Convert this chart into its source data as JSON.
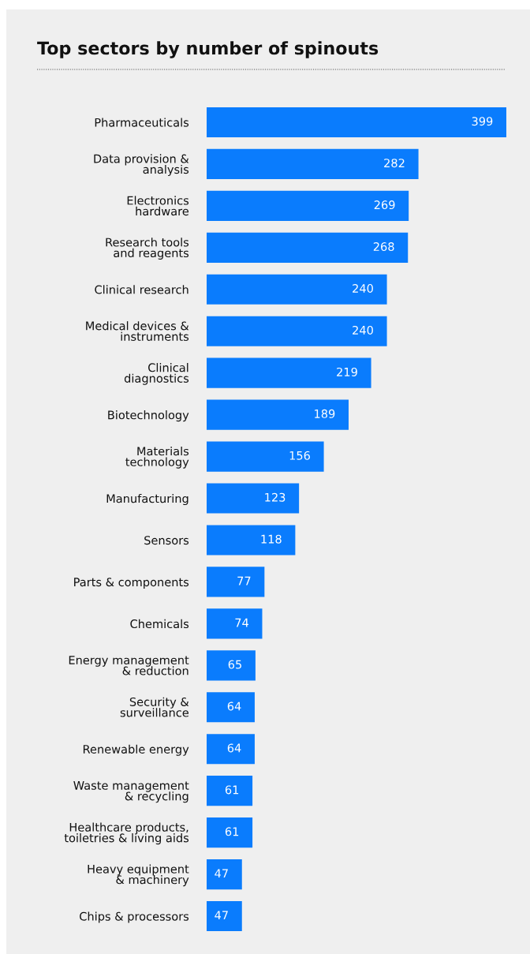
{
  "chart_data": {
    "type": "bar",
    "orientation": "horizontal",
    "title": "Top sectors by number of spinouts",
    "categories": [
      "Pharmaceuticals",
      "Data provision &\nanalysis",
      "Electronics\nhardware",
      "Research tools\nand reagents",
      "Clinical research",
      "Medical devices &\ninstruments",
      "Clinical\ndiagnostics",
      "Biotechnology",
      "Materials\ntechnology",
      "Manufacturing",
      "Sensors",
      "Parts & components",
      "Chemicals",
      "Energy management\n& reduction",
      "Security &\nsurveillance",
      "Renewable energy",
      "Waste management\n& recycling",
      "Healthcare products,\ntoiletries & living aids",
      "Heavy equipment\n& machinery",
      "Chips & processors"
    ],
    "values": [
      399,
      282,
      269,
      268,
      240,
      240,
      219,
      189,
      156,
      123,
      118,
      77,
      74,
      65,
      64,
      64,
      61,
      61,
      47,
      47
    ],
    "color": "#0a7cfd",
    "data_labels": true
  }
}
